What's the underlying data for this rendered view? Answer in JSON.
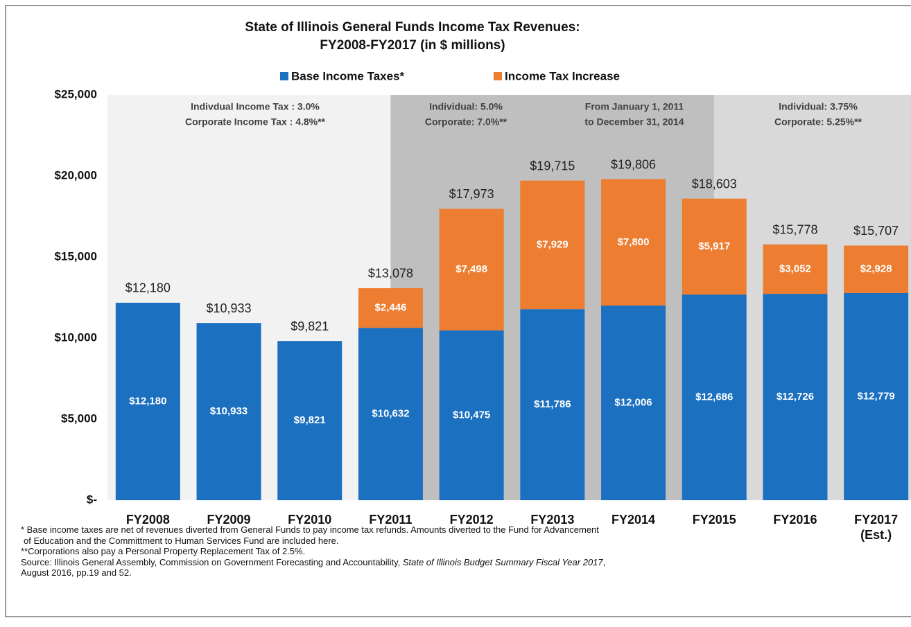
{
  "chart_data": {
    "type": "stacked_bar",
    "title": [
      "State of Illinois General Funds Income Tax Revenues:",
      "FY2008-FY2017 (in $ millions)"
    ],
    "categories": [
      "FY2008",
      "FY2009",
      "FY2010",
      "FY2011",
      "FY2012",
      "FY2013",
      "FY2014",
      "FY2015",
      "FY2016",
      "FY2017 (Est.)"
    ],
    "series": [
      {
        "name": "Base Income Taxes*",
        "color": "#1b70c0",
        "values": [
          12180,
          10933,
          9821,
          10632,
          10475,
          11786,
          12006,
          12686,
          12726,
          12779
        ],
        "value_labels": [
          "$12,180",
          "$10,933",
          "$9,821",
          "$10,632",
          "$10,475",
          "$11,786",
          "$12,006",
          "$12,686",
          "$12,726",
          "$12,779"
        ]
      },
      {
        "name": "Income Tax Increase",
        "color": "#ed7d31",
        "values": [
          null,
          null,
          null,
          2446,
          7498,
          7929,
          7800,
          5917,
          3052,
          2928
        ],
        "value_labels": [
          null,
          null,
          null,
          "$2,446",
          "$7,498",
          "$7,929",
          "$7,800",
          "$5,917",
          "$3,052",
          "$2,928"
        ]
      }
    ],
    "totals": [
      12180,
      10933,
      9821,
      13078,
      17973,
      19715,
      19806,
      18603,
      15778,
      15707
    ],
    "total_labels": [
      "$12,180",
      "$10,933",
      "$9,821",
      "$13,078",
      "$17,973",
      "$19,715",
      "$19,806",
      "$18,603",
      "$15,778",
      "$15,707"
    ],
    "ylim": [
      0,
      25000
    ],
    "yticks": [
      {
        "value": 0,
        "label": "$-"
      },
      {
        "value": 5000,
        "label": "$5,000"
      },
      {
        "value": 10000,
        "label": "$10,000"
      },
      {
        "value": 15000,
        "label": "$15,000"
      },
      {
        "value": 20000,
        "label": "$20,000"
      },
      {
        "value": 25000,
        "label": "$25,000"
      }
    ],
    "legend": "top",
    "regions": [
      {
        "from": "FY2008",
        "to": "FY2011",
        "color": "#f2f2f2",
        "notes": [
          [
            "Indivdual Income Tax : 3.0%",
            "Corporate Income Tax : 4.8%**"
          ]
        ]
      },
      {
        "from": "FY2011",
        "to": "FY2015",
        "color": "#bfbfbf",
        "notes": [
          [
            "Individual: 5.0%",
            "Corporate: 7.0%**"
          ],
          [
            "From January 1, 2011",
            "to December 31, 2014"
          ]
        ]
      },
      {
        "from": "FY2015",
        "to": "FY2017 (Est.)",
        "color": "#d9d9d9",
        "notes": [
          [
            "Individual: 3.75%",
            "Corporate: 5.25%**"
          ]
        ]
      }
    ],
    "footnotes": [
      "* Base income taxes are net of revenues diverted from General Funds to pay income tax refunds. Amounts diverted to the Fund for Advancement",
      "of Education and the Committment to Human Services Fund are included here.",
      "**Corporations also pay a Personal Property Replacement Tax of 2.5%."
    ],
    "source": {
      "text": "Source: Illinois General Assembly, Commission on Government Forecasting and Accountability, ",
      "title": "State of Illinois Budget Summary Fiscal Year 2017",
      "after": ",",
      "last_line": "August 2016, pp.19 and 52."
    }
  }
}
